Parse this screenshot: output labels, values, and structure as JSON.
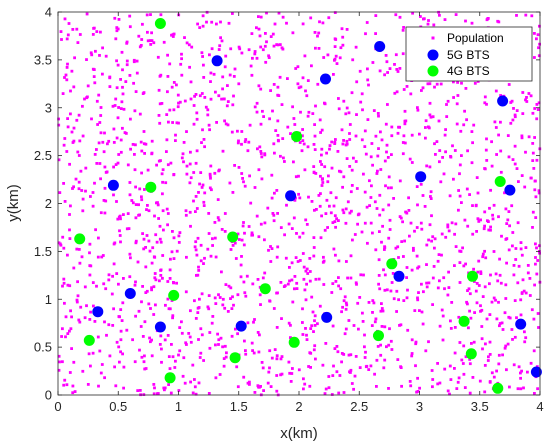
{
  "chart_data": {
    "type": "scatter",
    "xlabel": "x(km)",
    "ylabel": "y(km)",
    "xlim": [
      0,
      4
    ],
    "ylim": [
      0,
      4
    ],
    "xticks": [
      "0",
      "0.5",
      "1",
      "1.5",
      "2",
      "2.5",
      "3",
      "3.5",
      "4"
    ],
    "yticks": [
      "0",
      "0.5",
      "1",
      "1.5",
      "2",
      "2.5",
      "3",
      "3.5",
      "4"
    ],
    "grid": false,
    "legend_position": "top-right",
    "colors": {
      "population": "#ff00ff",
      "bts5g": "#0000ff",
      "bts4g": "#00ff00",
      "axis": "#262626"
    },
    "population_count": 2000,
    "series": [
      {
        "name": "5G BTS",
        "key": "bts5g",
        "points": [
          [
            1.32,
            3.49
          ],
          [
            2.67,
            3.64
          ],
          [
            2.22,
            3.3
          ],
          [
            3.69,
            3.07
          ],
          [
            0.46,
            2.19
          ],
          [
            1.93,
            2.08
          ],
          [
            3.01,
            2.28
          ],
          [
            3.75,
            2.14
          ],
          [
            0.6,
            1.06
          ],
          [
            0.33,
            0.87
          ],
          [
            0.85,
            0.71
          ],
          [
            1.52,
            0.72
          ],
          [
            2.23,
            0.81
          ],
          [
            2.83,
            1.24
          ],
          [
            3.84,
            0.74
          ],
          [
            3.97,
            0.24
          ]
        ]
      },
      {
        "name": "4G BTS",
        "key": "bts4g",
        "points": [
          [
            0.85,
            3.88
          ],
          [
            1.98,
            2.7
          ],
          [
            0.77,
            2.17
          ],
          [
            0.18,
            1.63
          ],
          [
            1.45,
            1.65
          ],
          [
            3.67,
            2.23
          ],
          [
            2.77,
            1.37
          ],
          [
            3.44,
            1.24
          ],
          [
            0.96,
            1.04
          ],
          [
            1.72,
            1.11
          ],
          [
            0.26,
            0.57
          ],
          [
            1.47,
            0.39
          ],
          [
            1.96,
            0.55
          ],
          [
            2.66,
            0.62
          ],
          [
            3.37,
            0.77
          ],
          [
            3.43,
            0.43
          ],
          [
            0.93,
            0.18
          ],
          [
            3.65,
            0.07
          ]
        ]
      }
    ],
    "legend": [
      "Population",
      "5G BTS",
      "4G BTS"
    ]
  }
}
